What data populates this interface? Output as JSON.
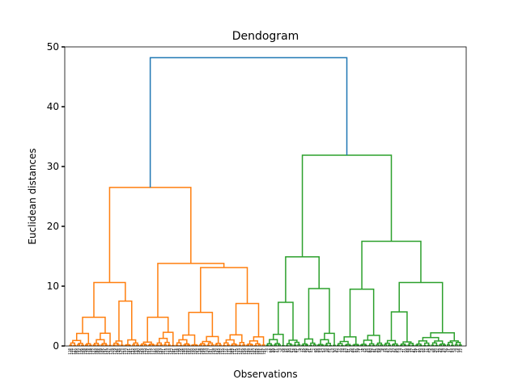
{
  "chart_data": {
    "type": "dendrogram",
    "title": "Dendogram",
    "xlabel": "Observations",
    "ylabel": "Euclidean distances",
    "ylim": [
      0,
      50
    ],
    "yticks": [
      0,
      10,
      20,
      30,
      40,
      50
    ],
    "leaf_count": 200,
    "leaf_labels": [
      "118",
      "146",
      "127",
      "160",
      "104",
      "132",
      "126",
      "108",
      "158",
      "138",
      "114",
      "128",
      "172",
      "184",
      "186",
      "166",
      "149",
      "185",
      "131",
      "135",
      "107",
      "176",
      "109",
      "119",
      "196",
      "145",
      "170",
      "103",
      "154",
      "173",
      "191",
      "187",
      "137",
      "168",
      "134",
      "190",
      "156",
      "164",
      "155",
      "179",
      "161",
      "142",
      "117",
      "122",
      "180",
      "150",
      "153",
      "167",
      "101",
      "115",
      "113",
      "194",
      "143",
      "181",
      "112",
      "148",
      "139",
      "116",
      "198",
      "124",
      "195",
      "152",
      "100",
      "140",
      "106",
      "162",
      "178",
      "189",
      "129",
      "174",
      "120",
      "197",
      "141",
      "159",
      "130",
      "123",
      "183",
      "102",
      "133",
      "177",
      "136",
      "171",
      "188",
      "163",
      "111",
      "175",
      "193",
      "147",
      "169",
      "110",
      "157",
      "199",
      "192",
      "144",
      "182",
      "105",
      "165",
      "121",
      "125",
      "151",
      "32",
      "7",
      "68",
      "55",
      "89",
      "21",
      "44",
      "3",
      "76",
      "58",
      "12",
      "93",
      "40",
      "67",
      "28",
      "85",
      "51",
      "9",
      "72",
      "35",
      "96",
      "18",
      "61",
      "47",
      "2",
      "80",
      "26",
      "99",
      "14",
      "53",
      "70",
      "38",
      "87",
      "5",
      "63",
      "30",
      "92",
      "17",
      "49",
      "74",
      "23",
      "82",
      "41",
      "10",
      "66",
      "57",
      "95",
      "29",
      "1",
      "78",
      "45",
      "36",
      "84",
      "60",
      "13",
      "91",
      "25",
      "69",
      "48",
      "8",
      "75",
      "33",
      "97",
      "19",
      "54",
      "42",
      "86",
      "64",
      "4",
      "27",
      "71",
      "50",
      "98",
      "16",
      "37",
      "81",
      "59",
      "11",
      "90",
      "24",
      "46",
      "77",
      "34",
      "65",
      "6",
      "88",
      "20",
      "52",
      "39",
      "94",
      "15",
      "62",
      "79",
      "31",
      "83",
      "43",
      "0",
      "73",
      "56",
      "22"
    ],
    "merges": [
      {
        "height": 48.2,
        "color": "#1f77b4",
        "from": [
          26.5,
          31.9
        ]
      },
      {
        "height": 26.5,
        "color": "#ff7f0e",
        "from": [
          10.6,
          13.8
        ]
      },
      {
        "height": 10.6,
        "color": "#ff7f0e",
        "from": [
          4.8,
          7.5
        ]
      },
      {
        "height": 4.8,
        "color": "#ff7f0e",
        "from": [
          2.1,
          3.6
        ]
      },
      {
        "height": 7.5,
        "color": "#ff7f0e",
        "from": [
          4.7,
          3.0
        ]
      },
      {
        "height": 13.8,
        "color": "#ff7f0e",
        "from": [
          4.8,
          13.1
        ]
      },
      {
        "height": 4.8,
        "color": "#ff7f0e",
        "from": [
          2.2,
          3.0
        ]
      },
      {
        "height": 13.1,
        "color": "#ff7f0e",
        "from": [
          5.6,
          7.1
        ]
      },
      {
        "height": 5.6,
        "color": "#ff7f0e",
        "from": [
          2.8,
          3.6
        ]
      },
      {
        "height": 7.1,
        "color": "#ff7f0e",
        "from": [
          2.5,
          3.6
        ]
      },
      {
        "height": 31.9,
        "color": "#2ca02c",
        "from": [
          14.9,
          17.5
        ]
      },
      {
        "height": 14.9,
        "color": "#2ca02c",
        "from": [
          7.3,
          9.6
        ]
      },
      {
        "height": 7.3,
        "color": "#2ca02c",
        "from": [
          3.6,
          4.7
        ]
      },
      {
        "height": 9.6,
        "color": "#2ca02c",
        "from": [
          3.3,
          9.6
        ]
      },
      {
        "height": 17.5,
        "color": "#2ca02c",
        "from": [
          9.5,
          10.6
        ]
      },
      {
        "height": 9.5,
        "color": "#2ca02c",
        "from": [
          4.6,
          6.9
        ]
      },
      {
        "height": 10.6,
        "color": "#2ca02c",
        "from": [
          5.7,
          10.6
        ]
      },
      {
        "height": 5.7,
        "color": "#2ca02c",
        "from": [
          3.6,
          2.3
        ]
      }
    ],
    "clusters": [
      {
        "color": "#ff7f0e",
        "leaf_range": [
          0,
          100
        ]
      },
      {
        "color": "#2ca02c",
        "leaf_range": [
          100,
          200
        ]
      }
    ],
    "link_color_above_threshold": "#1f77b4",
    "grid": false,
    "legend": "none"
  }
}
